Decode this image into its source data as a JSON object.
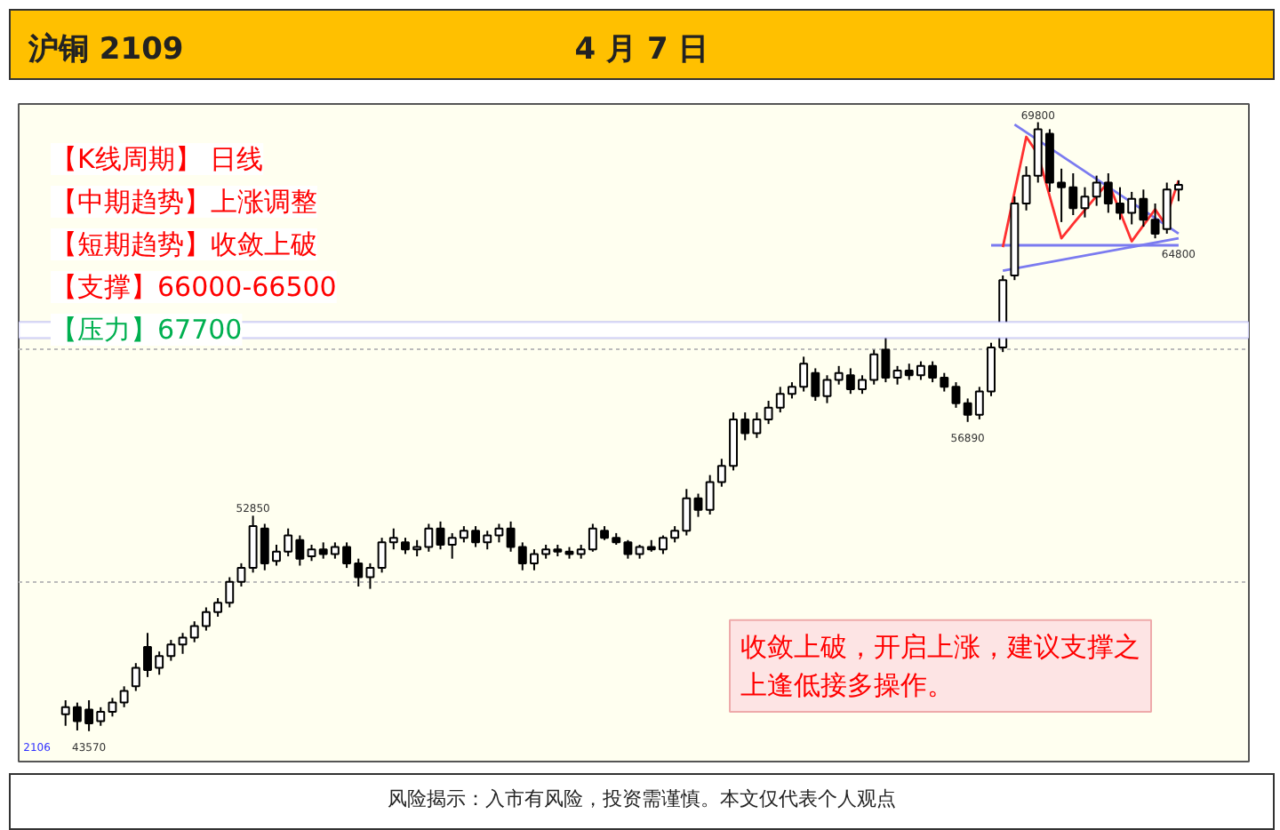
{
  "chart_data": {
    "type": "candlestick",
    "title": "沪铜 2109",
    "subtitle": "4 月 7 日",
    "categories": [
      null,
      null,
      null,
      null,
      null,
      null,
      null,
      null,
      null,
      null,
      null,
      null,
      null,
      null,
      null,
      null,
      null,
      null,
      null,
      null,
      null,
      null,
      null,
      null,
      null,
      null,
      null,
      null,
      null,
      null,
      null,
      null,
      null,
      null,
      null,
      null,
      null,
      null,
      null,
      null,
      null,
      null,
      null,
      null,
      null,
      null,
      null,
      null,
      null,
      null,
      null,
      null,
      null,
      null,
      null,
      null,
      null,
      null,
      null,
      null,
      null,
      null,
      null,
      null,
      null,
      null,
      null,
      null,
      null,
      null,
      null,
      null,
      null,
      null,
      null,
      null,
      null,
      null,
      null,
      null,
      null,
      null,
      null,
      null,
      null,
      null,
      null,
      null,
      null,
      null,
      null,
      null,
      null,
      null,
      null,
      null
    ],
    "ohlc": [
      [
        44300,
        44900,
        43800,
        44600
      ],
      [
        44600,
        44800,
        43600,
        44000
      ],
      [
        44500,
        44900,
        43570,
        43900
      ],
      [
        44000,
        44600,
        43800,
        44400
      ],
      [
        44400,
        45000,
        44200,
        44800
      ],
      [
        44800,
        45500,
        44600,
        45300
      ],
      [
        45500,
        46500,
        45300,
        46300
      ],
      [
        47200,
        47800,
        45900,
        46200
      ],
      [
        46300,
        47000,
        46000,
        46800
      ],
      [
        46800,
        47500,
        46600,
        47300
      ],
      [
        47300,
        47800,
        46900,
        47600
      ],
      [
        47600,
        48300,
        47400,
        48100
      ],
      [
        48100,
        48900,
        47900,
        48700
      ],
      [
        48700,
        49300,
        48500,
        49100
      ],
      [
        49100,
        50200,
        48900,
        50000
      ],
      [
        50000,
        50800,
        49800,
        50600
      ],
      [
        50600,
        52850,
        50400,
        52400
      ],
      [
        52300,
        52500,
        50500,
        50800
      ],
      [
        50900,
        51600,
        50700,
        51300
      ],
      [
        51300,
        52300,
        51100,
        52000
      ],
      [
        51800,
        52000,
        50700,
        51000
      ],
      [
        51100,
        51600,
        50900,
        51400
      ],
      [
        51400,
        51700,
        51000,
        51200
      ],
      [
        51200,
        51700,
        51000,
        51500
      ],
      [
        51500,
        51700,
        50600,
        50800
      ],
      [
        50800,
        51000,
        49800,
        50200
      ],
      [
        50200,
        50800,
        49700,
        50600
      ],
      [
        50600,
        51900,
        50400,
        51700
      ],
      [
        51700,
        52300,
        51400,
        51900
      ],
      [
        51700,
        51900,
        51200,
        51400
      ],
      [
        51400,
        51800,
        51100,
        51500
      ],
      [
        51500,
        52500,
        51300,
        52300
      ],
      [
        52300,
        52600,
        51400,
        51600
      ],
      [
        51600,
        52100,
        51000,
        51900
      ],
      [
        51900,
        52400,
        51700,
        52200
      ],
      [
        52200,
        52400,
        51500,
        51700
      ],
      [
        51700,
        52200,
        51400,
        52000
      ],
      [
        52000,
        52500,
        51700,
        52300
      ],
      [
        52300,
        52600,
        51300,
        51500
      ],
      [
        51500,
        51700,
        50500,
        50800
      ],
      [
        50800,
        51400,
        50500,
        51200
      ],
      [
        51200,
        51600,
        51000,
        51400
      ],
      [
        51400,
        51600,
        51100,
        51300
      ],
      [
        51300,
        51500,
        51000,
        51200
      ],
      [
        51200,
        51600,
        51000,
        51400
      ],
      [
        51400,
        52500,
        51300,
        52300
      ],
      [
        52200,
        52400,
        51800,
        51900
      ],
      [
        51900,
        52100,
        51600,
        51700
      ],
      [
        51700,
        51800,
        51000,
        51200
      ],
      [
        51200,
        51600,
        51000,
        51500
      ],
      [
        51500,
        51800,
        51300,
        51400
      ],
      [
        51400,
        52000,
        51200,
        51900
      ],
      [
        51900,
        52400,
        51700,
        52200
      ],
      [
        52200,
        54000,
        52000,
        53600
      ],
      [
        53600,
        53800,
        52800,
        53100
      ],
      [
        53100,
        54600,
        52900,
        54300
      ],
      [
        54300,
        55300,
        54100,
        55000
      ],
      [
        55000,
        57300,
        54800,
        57000
      ],
      [
        57000,
        57300,
        56100,
        56400
      ],
      [
        56400,
        57300,
        56200,
        57000
      ],
      [
        57000,
        57800,
        56800,
        57500
      ],
      [
        57500,
        58400,
        57300,
        58100
      ],
      [
        58100,
        58600,
        57900,
        58400
      ],
      [
        58400,
        59700,
        58200,
        59400
      ],
      [
        59000,
        59200,
        57800,
        58000
      ],
      [
        58000,
        58900,
        57700,
        58700
      ],
      [
        58700,
        59300,
        58500,
        59000
      ],
      [
        58900,
        59200,
        58100,
        58300
      ],
      [
        58300,
        58900,
        58100,
        58700
      ],
      [
        58700,
        60000,
        58500,
        59800
      ],
      [
        60000,
        60600,
        58600,
        58800
      ],
      [
        58800,
        59300,
        58500,
        59100
      ],
      [
        59100,
        59400,
        58700,
        58900
      ],
      [
        58900,
        59500,
        58700,
        59300
      ],
      [
        59300,
        59500,
        58600,
        58800
      ],
      [
        58800,
        59000,
        58200,
        58400
      ],
      [
        58400,
        58600,
        57500,
        57700
      ],
      [
        57700,
        57900,
        56890,
        57200
      ],
      [
        57200,
        58400,
        57000,
        58200
      ],
      [
        58200,
        60300,
        58000,
        60100
      ],
      [
        60100,
        63200,
        59900,
        63000
      ],
      [
        63200,
        66600,
        63000,
        66300
      ],
      [
        66300,
        67900,
        66000,
        67500
      ],
      [
        67500,
        69800,
        67200,
        69500
      ],
      [
        69300,
        69500,
        66800,
        67200
      ],
      [
        67200,
        67800,
        65500,
        67000
      ],
      [
        67000,
        67600,
        65800,
        66100
      ],
      [
        66100,
        67000,
        65700,
        66600
      ],
      [
        66600,
        67500,
        66200,
        67200
      ],
      [
        67200,
        67600,
        65900,
        66300
      ],
      [
        66300,
        67000,
        65600,
        65900
      ],
      [
        65900,
        66800,
        65400,
        66500
      ],
      [
        66500,
        66900,
        65300,
        65600
      ],
      [
        65600,
        66300,
        64800,
        65000
      ],
      [
        65200,
        67200,
        65000,
        66900
      ],
      [
        66900,
        67300,
        66400,
        67100
      ]
    ],
    "series": [
      {
        "type": "line",
        "color": "#7b7bf0",
        "values": [
          null,
          null,
          null,
          null,
          null,
          null,
          null,
          null,
          null,
          null,
          null,
          null,
          null,
          null,
          null,
          null,
          null,
          null,
          null,
          null,
          null,
          null,
          null,
          null,
          null,
          null,
          null,
          null,
          null,
          null,
          null,
          null,
          null,
          null,
          null,
          null,
          null,
          null,
          null,
          null,
          null,
          null,
          null,
          null,
          null,
          null,
          null,
          null,
          null,
          null,
          null,
          null,
          null,
          null,
          null,
          null,
          null,
          null,
          null,
          null,
          null,
          null,
          null,
          null,
          null,
          null,
          null,
          null,
          null,
          null,
          null,
          null,
          null,
          null,
          null,
          null,
          null,
          null,
          null,
          null,
          null,
          69700,
          null,
          null,
          null,
          null,
          null,
          null,
          null,
          null,
          null,
          null,
          null,
          null,
          null,
          65000
        ]
      },
      {
        "type": "line",
        "color": "#7b7bf0",
        "values": [
          null,
          null,
          null,
          null,
          null,
          null,
          null,
          null,
          null,
          null,
          null,
          null,
          null,
          null,
          null,
          null,
          null,
          null,
          null,
          null,
          null,
          null,
          null,
          null,
          null,
          null,
          null,
          null,
          null,
          null,
          null,
          null,
          null,
          null,
          null,
          null,
          null,
          null,
          null,
          null,
          null,
          null,
          null,
          null,
          null,
          null,
          null,
          null,
          null,
          null,
          null,
          null,
          null,
          null,
          null,
          null,
          null,
          null,
          null,
          null,
          null,
          null,
          null,
          null,
          null,
          null,
          null,
          null,
          null,
          null,
          null,
          null,
          null,
          null,
          null,
          null,
          null,
          null,
          null,
          null,
          63400,
          null,
          null,
          null,
          null,
          null,
          null,
          null,
          null,
          null,
          null,
          null,
          null,
          null,
          null,
          64800
        ]
      },
      {
        "type": "line",
        "color": "#7b7bf0",
        "values": [
          null,
          null,
          null,
          null,
          null,
          null,
          null,
          null,
          null,
          null,
          null,
          null,
          null,
          null,
          null,
          null,
          null,
          null,
          null,
          null,
          null,
          null,
          null,
          null,
          null,
          null,
          null,
          null,
          null,
          null,
          null,
          null,
          null,
          null,
          null,
          null,
          null,
          null,
          null,
          null,
          null,
          null,
          null,
          null,
          null,
          null,
          null,
          null,
          null,
          null,
          null,
          null,
          null,
          null,
          null,
          null,
          null,
          null,
          null,
          null,
          null,
          null,
          null,
          null,
          null,
          null,
          null,
          null,
          null,
          null,
          null,
          null,
          null,
          null,
          null,
          null,
          null,
          null,
          null,
          64500,
          null,
          null,
          null,
          null,
          null,
          null,
          null,
          null,
          null,
          null,
          null,
          null,
          null,
          null,
          null,
          64500
        ]
      },
      {
        "type": "line",
        "color": "#ff3030",
        "values": [
          null,
          null,
          null,
          null,
          null,
          null,
          null,
          null,
          null,
          null,
          null,
          null,
          null,
          null,
          null,
          null,
          null,
          null,
          null,
          null,
          null,
          null,
          null,
          null,
          null,
          null,
          null,
          null,
          null,
          null,
          null,
          null,
          null,
          null,
          null,
          null,
          null,
          null,
          null,
          null,
          null,
          null,
          null,
          null,
          null,
          null,
          null,
          null,
          null,
          null,
          null,
          null,
          null,
          null,
          null,
          null,
          null,
          null,
          null,
          null,
          null,
          null,
          null,
          null,
          null,
          null,
          null,
          null,
          null,
          null,
          null,
          null,
          null,
          null,
          null,
          null,
          null,
          null,
          null,
          null,
          64420,
          null,
          69170,
          68420,
          null,
          64800,
          65420,
          null,
          null,
          67220,
          null,
          64670,
          null,
          66050,
          65300,
          null
        ]
      },
      {
        "type": "line",
        "color": "#ff3030",
        "values": [
          null,
          null,
          null,
          null,
          null,
          null,
          null,
          null,
          null,
          null,
          null,
          null,
          null,
          null,
          null,
          null,
          null,
          null,
          null,
          null,
          null,
          null,
          null,
          null,
          null,
          null,
          null,
          null,
          null,
          null,
          null,
          null,
          null,
          null,
          null,
          null,
          null,
          null,
          null,
          null,
          null,
          null,
          null,
          null,
          null,
          null,
          null,
          null,
          null,
          null,
          null,
          null,
          null,
          null,
          null,
          null,
          null,
          null,
          null,
          null,
          null,
          null,
          null,
          null,
          null,
          null,
          null,
          null,
          null,
          null,
          null,
          null,
          null,
          null,
          null,
          null,
          null,
          null,
          null,
          null,
          null,
          null,
          null,
          null,
          null,
          null,
          null,
          null,
          null,
          null,
          null,
          null,
          null,
          null,
          65790,
          67290
        ]
      }
    ],
    "bands": [
      {
        "axis": "y",
        "from": 60500,
        "to": 61200,
        "color": "#7b7bf0"
      }
    ],
    "yticks": [
      {
        "value": 50000,
        "label": null
      },
      {
        "value": 60000,
        "label": null
      }
    ],
    "grid": "y",
    "annotations": [
      "【K线周期】 日线",
      "【中期趋势】上涨调整",
      "【短期趋势】收敛上破",
      "【支撑】66000-66500",
      "【压力】67700",
      "收敛上破，开启上涨，建议支撑之上逢低接多操作。",
      "风险揭示：入市有风险，投资需谨慎。本文仅代表个人观点",
      "2106",
      {
        "text": "43570",
        "y": 43570
      },
      {
        "text": "52850",
        "y": 52850
      },
      {
        "text": "56890",
        "y": 56890
      },
      {
        "text": "69800",
        "y": 69800
      },
      {
        "text": "64800",
        "y": 64800
      }
    ]
  }
}
